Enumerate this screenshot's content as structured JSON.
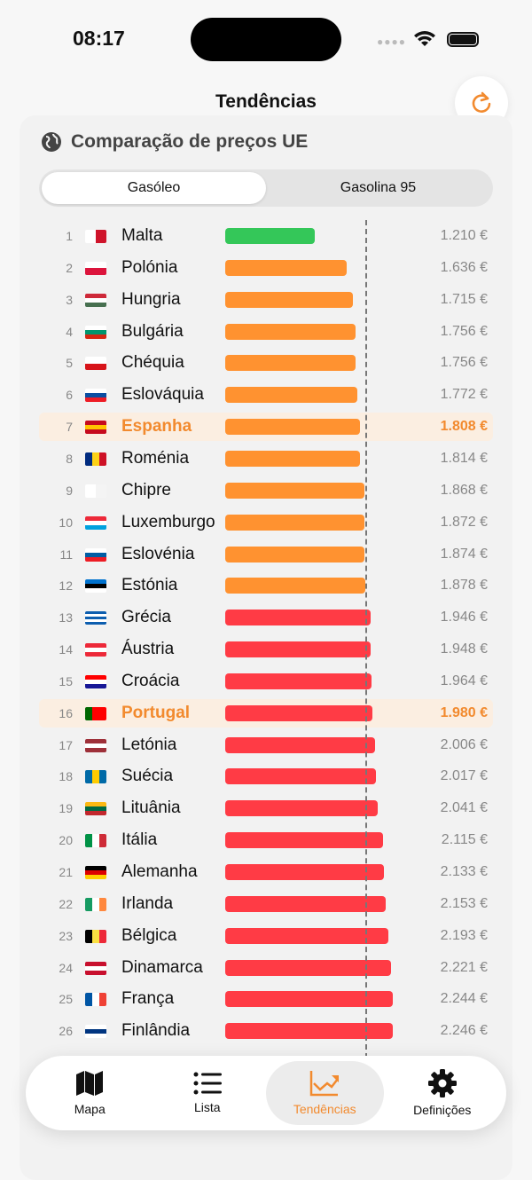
{
  "status_bar": {
    "time": "08:17"
  },
  "header": {
    "title": "Tendências",
    "refresh_icon": "arrow-clockwise-icon"
  },
  "card": {
    "title": "Comparação de preços UE",
    "icon": "globe-icon"
  },
  "segmented": {
    "options": [
      "Gasóleo",
      "Gasolina 95"
    ],
    "selected": "Gasóleo"
  },
  "colors": {
    "cheapest": "#34C759",
    "mid": "#FF9230",
    "expensive": "#FF3B45",
    "highlight": "#F28A2E"
  },
  "chart_data": {
    "type": "bar",
    "reference_line": 1.88,
    "rows": [
      {
        "rank": "1",
        "country": "Malta",
        "price": "1.210 €",
        "value": 1.21,
        "tier": "cheapest",
        "flag": [
          "#fff",
          "#cf142b"
        ]
      },
      {
        "rank": "2",
        "country": "Polónia",
        "price": "1.636 €",
        "value": 1.636,
        "tier": "mid",
        "flag": [
          "#fff",
          "#dc143c"
        ],
        "h": true
      },
      {
        "rank": "3",
        "country": "Hungria",
        "price": "1.715 €",
        "value": 1.715,
        "tier": "mid",
        "flag": [
          "#ce2939",
          "#fff",
          "#477050"
        ],
        "h": true
      },
      {
        "rank": "4",
        "country": "Bulgária",
        "price": "1.756 €",
        "value": 1.756,
        "tier": "mid",
        "flag": [
          "#fff",
          "#00966e",
          "#d62612"
        ],
        "h": true
      },
      {
        "rank": "5",
        "country": "Chéquia",
        "price": "1.756 €",
        "value": 1.756,
        "tier": "mid",
        "flag": [
          "#fff",
          "#d7141a"
        ],
        "h": true
      },
      {
        "rank": "6",
        "country": "Eslováquia",
        "price": "1.772 €",
        "value": 1.772,
        "tier": "mid",
        "flag": [
          "#fff",
          "#0b4ea2",
          "#ee1c25"
        ],
        "h": true
      },
      {
        "rank": "7",
        "country": "Espanha",
        "price": "1.808 €",
        "value": 1.808,
        "tier": "mid",
        "flag": [
          "#c60b1e",
          "#ffc400",
          "#c60b1e"
        ],
        "h": true,
        "highlight": true
      },
      {
        "rank": "8",
        "country": "Roménia",
        "price": "1.814 €",
        "value": 1.814,
        "tier": "mid",
        "flag": [
          "#002b7f",
          "#fcd116",
          "#ce1126"
        ]
      },
      {
        "rank": "9",
        "country": "Chipre",
        "price": "1.868 €",
        "value": 1.868,
        "tier": "mid",
        "flag": [
          "#fff",
          "#f4f4f4"
        ]
      },
      {
        "rank": "10",
        "country": "Luxemburgo",
        "price": "1.872 €",
        "value": 1.872,
        "tier": "mid",
        "flag": [
          "#ed2939",
          "#fff",
          "#00a1de"
        ],
        "h": true
      },
      {
        "rank": "11",
        "country": "Eslovénia",
        "price": "1.874 €",
        "value": 1.874,
        "tier": "mid",
        "flag": [
          "#fff",
          "#005da4",
          "#ed1c24"
        ],
        "h": true
      },
      {
        "rank": "12",
        "country": "Estónia",
        "price": "1.878 €",
        "value": 1.878,
        "tier": "mid",
        "flag": [
          "#0072ce",
          "#000",
          "#fff"
        ],
        "h": true
      },
      {
        "rank": "13",
        "country": "Grécia",
        "price": "1.946 €",
        "value": 1.946,
        "tier": "expensive",
        "flag": [
          "#0d5eaf",
          "#fff",
          "#0d5eaf",
          "#fff",
          "#0d5eaf"
        ],
        "h": true
      },
      {
        "rank": "14",
        "country": "Áustria",
        "price": "1.948 €",
        "value": 1.948,
        "tier": "expensive",
        "flag": [
          "#ed2939",
          "#fff",
          "#ed2939"
        ],
        "h": true
      },
      {
        "rank": "15",
        "country": "Croácia",
        "price": "1.964 €",
        "value": 1.964,
        "tier": "expensive",
        "flag": [
          "#ff0000",
          "#fff",
          "#171796"
        ],
        "h": true
      },
      {
        "rank": "16",
        "country": "Portugal",
        "price": "1.980 €",
        "value": 1.98,
        "tier": "expensive",
        "flag": [
          "#006600",
          "#ff0000",
          "#ff0000"
        ],
        "highlight": true
      },
      {
        "rank": "17",
        "country": "Letónia",
        "price": "2.006 €",
        "value": 2.006,
        "tier": "expensive",
        "flag": [
          "#9e3039",
          "#fff",
          "#9e3039"
        ],
        "h": true
      },
      {
        "rank": "18",
        "country": "Suécia",
        "price": "2.017 €",
        "value": 2.017,
        "tier": "expensive",
        "flag": [
          "#006aa7",
          "#fecc00",
          "#006aa7"
        ]
      },
      {
        "rank": "19",
        "country": "Lituânia",
        "price": "2.041 €",
        "value": 2.041,
        "tier": "expensive",
        "flag": [
          "#fdb913",
          "#006a44",
          "#c1272d"
        ],
        "h": true
      },
      {
        "rank": "20",
        "country": "Itália",
        "price": "2.115 €",
        "value": 2.115,
        "tier": "expensive",
        "flag": [
          "#009246",
          "#fff",
          "#ce2b37"
        ]
      },
      {
        "rank": "21",
        "country": "Alemanha",
        "price": "2.133 €",
        "value": 2.133,
        "tier": "expensive",
        "flag": [
          "#000",
          "#dd0000",
          "#ffce00"
        ],
        "h": true
      },
      {
        "rank": "22",
        "country": "Irlanda",
        "price": "2.153 €",
        "value": 2.153,
        "tier": "expensive",
        "flag": [
          "#169b62",
          "#fff",
          "#ff883e"
        ]
      },
      {
        "rank": "23",
        "country": "Bélgica",
        "price": "2.193 €",
        "value": 2.193,
        "tier": "expensive",
        "flag": [
          "#000",
          "#fae042",
          "#ed2939"
        ]
      },
      {
        "rank": "24",
        "country": "Dinamarca",
        "price": "2.221 €",
        "value": 2.221,
        "tier": "expensive",
        "flag": [
          "#c8102e",
          "#fff",
          "#c8102e"
        ],
        "h": true
      },
      {
        "rank": "25",
        "country": "França",
        "price": "2.244 €",
        "value": 2.244,
        "tier": "expensive",
        "flag": [
          "#0055a4",
          "#fff",
          "#ef4135"
        ]
      },
      {
        "rank": "26",
        "country": "Finlândia",
        "price": "2.246 €",
        "value": 2.246,
        "tier": "expensive",
        "flag": [
          "#fff",
          "#003580",
          "#fff"
        ],
        "h": true
      }
    ]
  },
  "tabbar": {
    "items": [
      {
        "label": "Mapa",
        "icon": "map-icon"
      },
      {
        "label": "Lista",
        "icon": "list-icon"
      },
      {
        "label": "Tendências",
        "icon": "chart-trend-icon",
        "active": true
      },
      {
        "label": "Definições",
        "icon": "gear-icon"
      }
    ]
  }
}
